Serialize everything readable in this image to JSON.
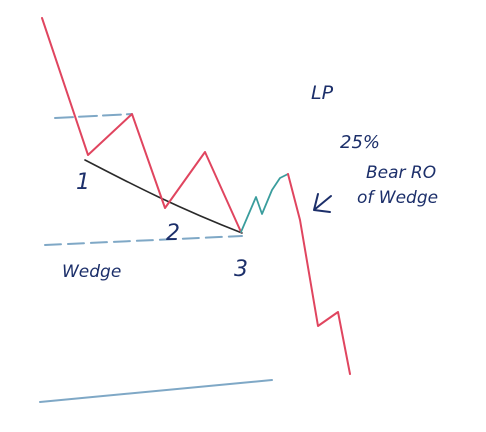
{
  "labels": {
    "point_1": "1",
    "point_2": "2",
    "point_3": "3",
    "wedge": "Wedge",
    "lp": "LP",
    "percent": "25%",
    "bear_ro": "Bear RO",
    "of_wedge": "of Wedge"
  },
  "colors": {
    "price_line": "#e0455f",
    "rebound_line": "#3a9d9d",
    "wedge_line": "#2a2a2a",
    "guide_line": "#7fa8c6",
    "ink": "#1c2f6a"
  }
}
